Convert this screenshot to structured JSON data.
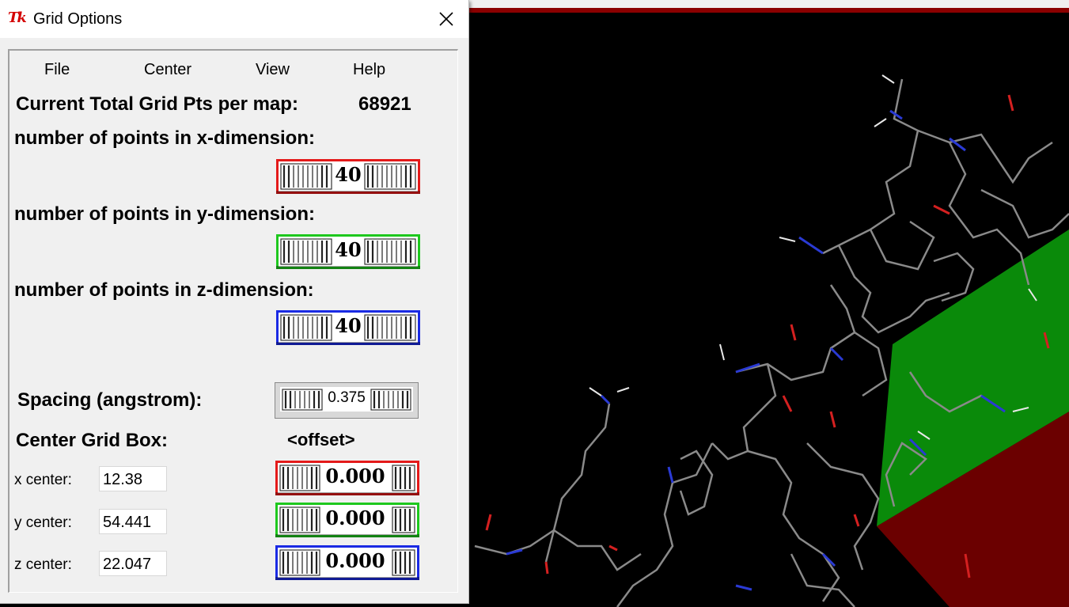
{
  "window": {
    "title": "Grid Options",
    "logo": "Tk",
    "close_icon": "close-icon"
  },
  "menu": [
    "File",
    "Center",
    "View",
    "Help"
  ],
  "total": {
    "label": "Current Total Grid Pts per map:",
    "value": "68921"
  },
  "dimensions": [
    {
      "label": "number of points in x-dimension:",
      "value": "40",
      "color": "#e41a1a"
    },
    {
      "label": "number of points in y-dimension:",
      "value": "40",
      "color": "#1ec81e"
    },
    {
      "label": "number of points in z-dimension:",
      "value": "40",
      "color": "#1a2ae4"
    }
  ],
  "spacing": {
    "label": "Spacing (angstrom):",
    "value": "0.375"
  },
  "center": {
    "label": "Center Grid Box:",
    "offset_label": "<offset>",
    "rows": [
      {
        "label": "x center:",
        "value": "12.38",
        "offset": "0.000",
        "color": "#e41a1a"
      },
      {
        "label": "y center:",
        "value": "54.441",
        "offset": "0.000",
        "color": "#1ec81e"
      },
      {
        "label": "z center:",
        "value": "22.047",
        "offset": "0.000",
        "color": "#1a2ae4"
      }
    ]
  },
  "colors": {
    "red": "#e41a1a",
    "green": "#1ec81e",
    "blue": "#1a2ae4",
    "box_green": "#0a8a0a",
    "box_red": "#6b0000"
  }
}
